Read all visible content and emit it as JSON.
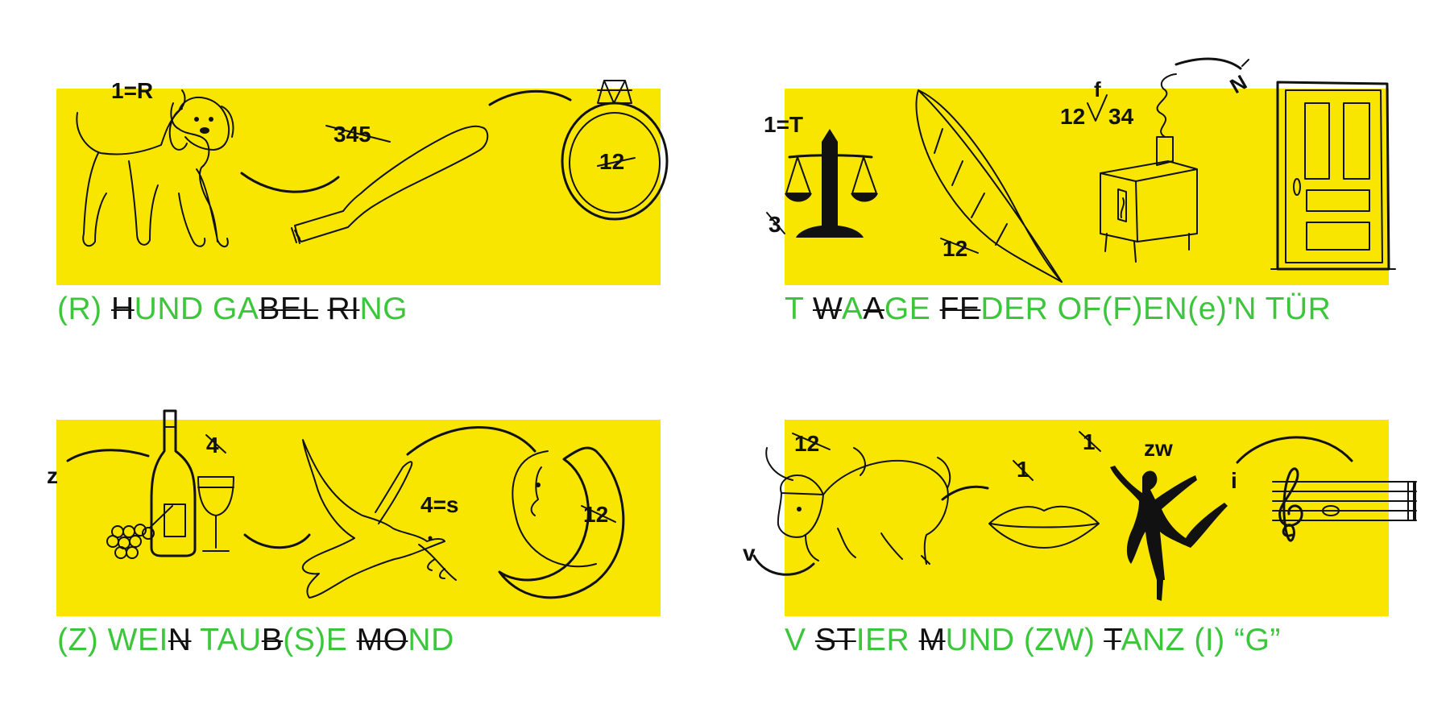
{
  "puzzles": [
    {
      "labels": {
        "top": "1=R",
        "fork": "345",
        "ring": "12"
      },
      "solution": [
        {
          "text": "(R) ",
          "strike": false
        },
        {
          "text": "H",
          "strike": true
        },
        {
          "text": "UND GA",
          "strike": false
        },
        {
          "text": "BEL",
          "strike": true
        },
        {
          "text": " ",
          "strike": false
        },
        {
          "text": "RI",
          "strike": true
        },
        {
          "text": "NG",
          "strike": false
        }
      ]
    },
    {
      "labels": {
        "scale": "1=T",
        "scale_small": "3",
        "feather": "12",
        "stove_f": "f",
        "stove_12": "12",
        "stove_34": "34",
        "steam": "N"
      },
      "solution": [
        {
          "text": "T ",
          "strike": false
        },
        {
          "text": "W",
          "strike": true
        },
        {
          "text": "A",
          "strike": false
        },
        {
          "text": "A",
          "strike": true
        },
        {
          "text": "GE ",
          "strike": false
        },
        {
          "text": "FE",
          "strike": true
        },
        {
          "text": "DER OF(F)EN(e)'N TÜR",
          "strike": false
        }
      ]
    },
    {
      "labels": {
        "z": "z",
        "wine": "4",
        "dove": "4=s",
        "moon": "12"
      },
      "solution": [
        {
          "text": "(Z) WEI",
          "strike": false
        },
        {
          "text": "N",
          "strike": true
        },
        {
          "text": " TAU",
          "strike": false
        },
        {
          "text": "B",
          "strike": true
        },
        {
          "text": "(S)E ",
          "strike": false
        },
        {
          "text": "MO",
          "strike": true
        },
        {
          "text": "ND",
          "strike": false
        }
      ]
    },
    {
      "labels": {
        "bull": "12",
        "v": "v",
        "mouth": "1",
        "dancer_num": "1",
        "zw": "zw",
        "i": "i"
      },
      "solution": [
        {
          "text": "V ",
          "strike": false
        },
        {
          "text": "ST",
          "strike": true
        },
        {
          "text": "IER ",
          "strike": false
        },
        {
          "text": "M",
          "strike": true
        },
        {
          "text": "UND (ZW) ",
          "strike": false
        },
        {
          "text": "T",
          "strike": true
        },
        {
          "text": "ANZ (I) “G”",
          "strike": false
        }
      ]
    }
  ],
  "colors": {
    "panel": "#f8e600",
    "solution_text": "#3cc63c",
    "strike_text": "#111111"
  }
}
